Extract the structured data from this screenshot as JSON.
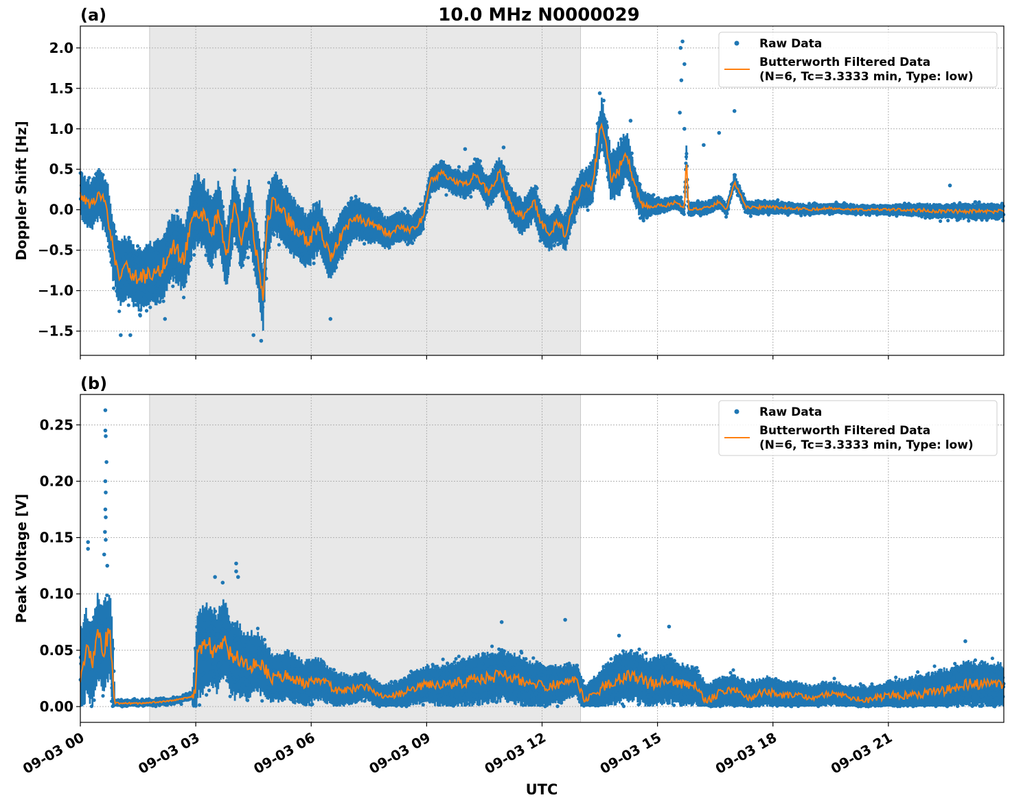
{
  "figure": {
    "title": "10.0 MHz N0000029",
    "xlabel": "UTC"
  },
  "chart_data": [
    {
      "panel_label": "(a)",
      "type": "scatter",
      "ylabel": "Doppler Shift [Hz]",
      "xlim_hours": [
        0,
        24
      ],
      "ylim": [
        -1.8,
        2.27
      ],
      "yticks": [
        -1.5,
        -1.0,
        -0.5,
        0.0,
        0.5,
        1.0,
        1.5,
        2.0
      ],
      "ytick_labels": [
        "−1.5",
        "−1.0",
        "−0.5",
        "0.0",
        "0.5",
        "1.0",
        "1.5",
        "2.0"
      ],
      "xticks_hours": [
        0,
        3,
        6,
        9,
        12,
        15,
        18,
        21
      ],
      "xtick_labels": [
        "09-03 00",
        "09-03 03",
        "09-03 06",
        "09-03 09",
        "09-03 12",
        "09-03 15",
        "09-03 18",
        "09-03 21"
      ],
      "shaded_span_hours": [
        1.8,
        13.0
      ],
      "grid": true,
      "legend_position": "top-right",
      "legend": [
        "Raw Data",
        "Butterworth Filtered Data",
        "(N=6, Tc=3.3333 min, Type: low)"
      ],
      "colors": {
        "raw": "#1f77b4",
        "filtered": "#ff7f0e",
        "shade": "#e8e8e8"
      },
      "series": [
        {
          "name": "Butterworth Filtered Data",
          "x_hours": [
            0.0,
            0.25,
            0.5,
            0.7,
            0.85,
            1.0,
            1.2,
            1.5,
            1.8,
            2.1,
            2.4,
            2.7,
            2.95,
            3.0,
            3.2,
            3.4,
            3.6,
            3.8,
            4.0,
            4.2,
            4.4,
            4.6,
            4.75,
            4.85,
            5.0,
            5.3,
            5.6,
            5.9,
            6.2,
            6.5,
            6.8,
            7.1,
            7.4,
            7.7,
            8.0,
            8.3,
            8.6,
            8.9,
            9.1,
            9.4,
            9.7,
            10.0,
            10.3,
            10.6,
            10.9,
            11.2,
            11.5,
            11.8,
            12.0,
            12.2,
            12.4,
            12.6,
            12.8,
            13.0,
            13.3,
            13.55,
            13.8,
            14.0,
            14.2,
            14.4,
            14.6,
            14.9,
            15.2,
            15.5,
            15.7,
            15.75,
            15.8,
            16.0,
            16.3,
            16.6,
            16.8,
            17.0,
            17.3,
            17.6,
            18.0,
            18.5,
            19.0,
            19.5,
            20.0,
            20.5,
            21.0,
            21.5,
            22.0,
            22.5,
            23.0,
            23.5,
            24.0
          ],
          "values": [
            0.2,
            0.05,
            0.2,
            0.0,
            -0.5,
            -0.8,
            -0.7,
            -0.85,
            -0.8,
            -0.75,
            -0.45,
            -0.6,
            -0.05,
            0.0,
            -0.05,
            -0.3,
            -0.05,
            -0.6,
            0.05,
            -0.4,
            0.0,
            -0.6,
            -1.1,
            -0.2,
            0.1,
            -0.05,
            -0.25,
            -0.4,
            -0.2,
            -0.6,
            -0.3,
            -0.1,
            -0.15,
            -0.2,
            -0.3,
            -0.2,
            -0.25,
            -0.1,
            0.35,
            0.45,
            0.35,
            0.3,
            0.45,
            0.2,
            0.45,
            0.05,
            -0.1,
            0.1,
            -0.2,
            -0.3,
            -0.15,
            -0.3,
            0.05,
            0.25,
            0.3,
            1.1,
            0.4,
            0.5,
            0.7,
            0.3,
            0.05,
            0.05,
            0.05,
            0.1,
            0.0,
            0.7,
            0.0,
            0.02,
            0.02,
            0.1,
            0.0,
            0.35,
            0.03,
            0.03,
            0.03,
            0.02,
            0.0,
            0.02,
            0.0,
            0.0,
            0.0,
            0.0,
            -0.01,
            -0.02,
            -0.02,
            -0.02,
            -0.02
          ]
        },
        {
          "name": "Raw Data",
          "spread_x_hours": [
            0,
            1,
            2,
            3,
            4,
            5,
            6,
            7,
            8,
            9,
            10,
            11,
            12,
            13,
            14,
            15,
            16,
            17,
            18,
            19,
            20,
            21,
            22,
            23,
            24
          ],
          "spread": [
            0.25,
            0.35,
            0.35,
            0.4,
            0.35,
            0.35,
            0.3,
            0.25,
            0.18,
            0.15,
            0.15,
            0.2,
            0.2,
            0.2,
            0.3,
            0.08,
            0.08,
            0.08,
            0.08,
            0.06,
            0.06,
            0.06,
            0.08,
            0.09,
            0.09
          ],
          "outliers": [
            {
              "x": 1.05,
              "y": -1.55
            },
            {
              "x": 1.3,
              "y": -1.55
            },
            {
              "x": 1.55,
              "y": -1.3
            },
            {
              "x": 2.2,
              "y": -1.35
            },
            {
              "x": 4.5,
              "y": -1.55
            },
            {
              "x": 4.7,
              "y": -1.62
            },
            {
              "x": 6.5,
              "y": -1.35
            },
            {
              "x": 10.0,
              "y": 0.75
            },
            {
              "x": 11.0,
              "y": 0.77
            },
            {
              "x": 13.5,
              "y": 1.44
            },
            {
              "x": 13.6,
              "y": 1.35
            },
            {
              "x": 14.3,
              "y": 1.1
            },
            {
              "x": 15.6,
              "y": 2.0
            },
            {
              "x": 15.65,
              "y": 2.08
            },
            {
              "x": 15.7,
              "y": 1.8
            },
            {
              "x": 15.62,
              "y": 1.6
            },
            {
              "x": 15.58,
              "y": 1.2
            },
            {
              "x": 15.7,
              "y": 1.0
            },
            {
              "x": 16.6,
              "y": 0.95
            },
            {
              "x": 17.0,
              "y": 1.22
            },
            {
              "x": 16.2,
              "y": 0.8
            },
            {
              "x": 22.6,
              "y": 0.3
            }
          ]
        }
      ]
    },
    {
      "panel_label": "(b)",
      "type": "scatter",
      "ylabel": "Peak Voltage [V]",
      "xlim_hours": [
        0,
        24
      ],
      "ylim": [
        -0.014,
        0.277
      ],
      "yticks": [
        0.0,
        0.05,
        0.1,
        0.15,
        0.2,
        0.25
      ],
      "ytick_labels": [
        "0.00",
        "0.05",
        "0.10",
        "0.15",
        "0.20",
        "0.25"
      ],
      "xticks_hours": [
        0,
        3,
        6,
        9,
        12,
        15,
        18,
        21
      ],
      "xtick_labels": [
        "09-03 00",
        "09-03 03",
        "09-03 06",
        "09-03 09",
        "09-03 12",
        "09-03 15",
        "09-03 18",
        "09-03 21"
      ],
      "shaded_span_hours": [
        1.8,
        13.0
      ],
      "grid": true,
      "legend_position": "top-right",
      "legend": [
        "Raw Data",
        "Butterworth Filtered Data",
        "(N=6, Tc=3.3333 min, Type: low)"
      ],
      "colors": {
        "raw": "#1f77b4",
        "filtered": "#ff7f0e",
        "shade": "#e8e8e8"
      },
      "series": [
        {
          "name": "Butterworth Filtered Data",
          "x_hours": [
            0.0,
            0.15,
            0.3,
            0.45,
            0.6,
            0.7,
            0.78,
            0.85,
            0.9,
            1.2,
            1.6,
            2.0,
            2.4,
            2.8,
            2.97,
            3.05,
            3.3,
            3.55,
            3.75,
            3.95,
            4.1,
            4.3,
            4.6,
            5.0,
            5.4,
            5.8,
            6.2,
            6.6,
            7.0,
            7.4,
            7.8,
            8.2,
            8.6,
            9.0,
            9.5,
            10.0,
            10.5,
            11.0,
            11.5,
            12.0,
            12.5,
            12.9,
            13.1,
            13.4,
            13.7,
            14.0,
            14.4,
            14.8,
            15.2,
            15.6,
            16.0,
            16.3,
            16.6,
            17.0,
            17.4,
            17.8,
            18.2,
            18.6,
            19.0,
            19.5,
            20.0,
            20.5,
            21.0,
            21.5,
            22.0,
            22.5,
            23.0,
            23.5,
            24.0
          ],
          "values": [
            0.03,
            0.048,
            0.038,
            0.06,
            0.052,
            0.06,
            0.065,
            0.02,
            0.003,
            0.003,
            0.003,
            0.004,
            0.005,
            0.008,
            0.01,
            0.045,
            0.055,
            0.048,
            0.06,
            0.04,
            0.042,
            0.035,
            0.04,
            0.025,
            0.028,
            0.02,
            0.025,
            0.015,
            0.015,
            0.018,
            0.009,
            0.01,
            0.015,
            0.02,
            0.018,
            0.022,
            0.025,
            0.028,
            0.022,
            0.018,
            0.02,
            0.025,
            0.005,
            0.012,
            0.02,
            0.025,
            0.028,
            0.02,
            0.025,
            0.02,
            0.018,
            0.004,
            0.012,
            0.015,
            0.008,
            0.014,
            0.01,
            0.011,
            0.008,
            0.012,
            0.008,
            0.006,
            0.01,
            0.01,
            0.012,
            0.015,
            0.02,
            0.02,
            0.018
          ]
        },
        {
          "name": "Raw Data",
          "spread_x_hours": [
            0,
            0.85,
            0.9,
            2.9,
            3.0,
            4.0,
            5.0,
            6.0,
            7.0,
            8.0,
            9.0,
            10.0,
            11.0,
            12.0,
            13.0,
            14.0,
            15.0,
            16.0,
            17.0,
            18.0,
            19.0,
            20.0,
            21.0,
            22.0,
            23.0,
            24.0
          ],
          "spread": [
            0.035,
            0.035,
            0.003,
            0.003,
            0.035,
            0.03,
            0.02,
            0.018,
            0.012,
            0.01,
            0.015,
            0.02,
            0.02,
            0.018,
            0.012,
            0.02,
            0.02,
            0.015,
            0.012,
            0.012,
            0.01,
            0.01,
            0.012,
            0.016,
            0.018,
            0.018
          ],
          "outliers": [
            {
              "x": 0.65,
              "y": 0.263
            },
            {
              "x": 0.65,
              "y": 0.245
            },
            {
              "x": 0.66,
              "y": 0.24
            },
            {
              "x": 0.68,
              "y": 0.217
            },
            {
              "x": 0.65,
              "y": 0.2
            },
            {
              "x": 0.66,
              "y": 0.19
            },
            {
              "x": 0.65,
              "y": 0.175
            },
            {
              "x": 0.66,
              "y": 0.168
            },
            {
              "x": 0.64,
              "y": 0.155
            },
            {
              "x": 0.66,
              "y": 0.148
            },
            {
              "x": 0.2,
              "y": 0.146
            },
            {
              "x": 0.2,
              "y": 0.14
            },
            {
              "x": 0.62,
              "y": 0.135
            },
            {
              "x": 0.7,
              "y": 0.125
            },
            {
              "x": 4.05,
              "y": 0.127
            },
            {
              "x": 4.05,
              "y": 0.12
            },
            {
              "x": 4.1,
              "y": 0.115
            },
            {
              "x": 3.5,
              "y": 0.115
            },
            {
              "x": 3.7,
              "y": 0.11
            },
            {
              "x": 10.95,
              "y": 0.075
            },
            {
              "x": 12.6,
              "y": 0.077
            },
            {
              "x": 15.3,
              "y": 0.071
            },
            {
              "x": 14.0,
              "y": 0.063
            },
            {
              "x": 23.0,
              "y": 0.058
            }
          ]
        }
      ]
    }
  ]
}
